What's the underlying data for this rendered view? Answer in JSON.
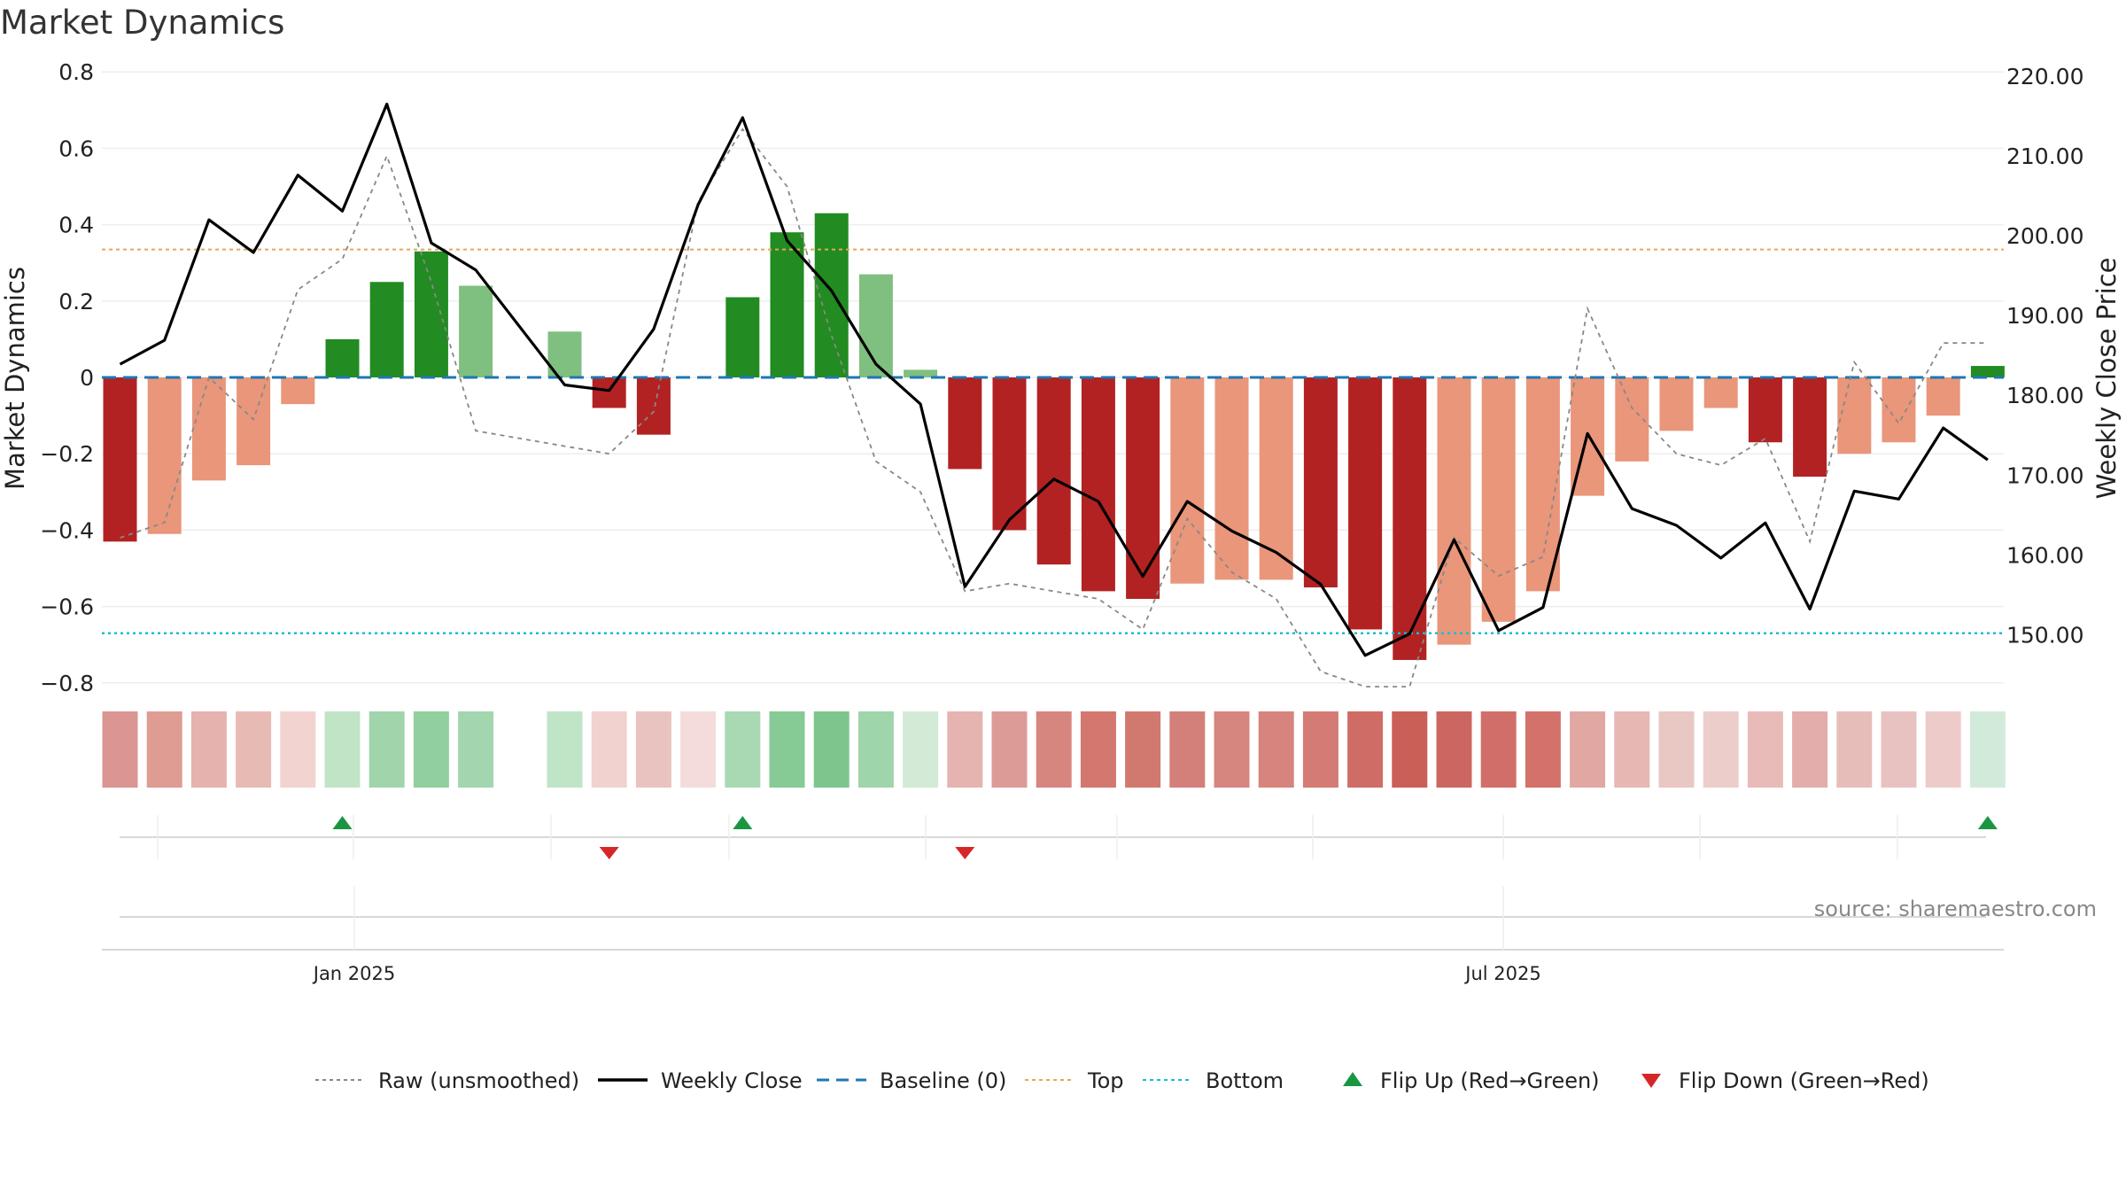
{
  "chart_data": {
    "type": "bar",
    "title": "Market Dynamics",
    "ylabel": "Market Dynamics",
    "ylabel_right": "Weekly Close Price",
    "ylim": [
      -0.8,
      0.8
    ],
    "ylim_right": [
      142.6,
      220.5
    ],
    "y_ticks": [
      "0.8",
      "0.6",
      "0.4",
      "0.2",
      "0",
      "−0.2",
      "−0.4",
      "−0.6",
      "−0.8"
    ],
    "y_ticks_right": [
      "220.00",
      "210.00",
      "200.00",
      "190.00",
      "180.00",
      "170.00",
      "160.00",
      "150.00"
    ],
    "date_ticks": [
      "Jan 2025",
      "Jul 2025"
    ],
    "grid": true,
    "legend_position": "bottom-center",
    "top_level": 0.335,
    "bottom_level": -0.67,
    "baseline": 0,
    "bars": [
      {
        "value": -0.43,
        "color": "#b22222"
      },
      {
        "value": -0.41,
        "color": "#e9967a"
      },
      {
        "value": -0.27,
        "color": "#e9967a"
      },
      {
        "value": -0.23,
        "color": "#e9967a"
      },
      {
        "value": -0.07,
        "color": "#e9967a"
      },
      {
        "value": 0.1,
        "color": "#228b22"
      },
      {
        "value": 0.25,
        "color": "#228b22"
      },
      {
        "value": 0.33,
        "color": "#228b22"
      },
      {
        "value": 0.24,
        "color": "#7fbf7f"
      },
      {
        "value": null,
        "color": ""
      },
      {
        "value": 0.12,
        "color": "#7fbf7f"
      },
      {
        "value": -0.08,
        "color": "#b22222"
      },
      {
        "value": -0.15,
        "color": "#b22222"
      },
      {
        "value": null,
        "color": ""
      },
      {
        "value": 0.21,
        "color": "#228b22"
      },
      {
        "value": 0.38,
        "color": "#228b22"
      },
      {
        "value": 0.43,
        "color": "#228b22"
      },
      {
        "value": 0.27,
        "color": "#7fbf7f"
      },
      {
        "value": 0.02,
        "color": "#7fbf7f"
      },
      {
        "value": -0.24,
        "color": "#b22222"
      },
      {
        "value": -0.4,
        "color": "#b22222"
      },
      {
        "value": -0.49,
        "color": "#b22222"
      },
      {
        "value": -0.56,
        "color": "#b22222"
      },
      {
        "value": -0.58,
        "color": "#b22222"
      },
      {
        "value": -0.54,
        "color": "#e9967a"
      },
      {
        "value": -0.53,
        "color": "#e9967a"
      },
      {
        "value": -0.53,
        "color": "#e9967a"
      },
      {
        "value": -0.55,
        "color": "#b22222"
      },
      {
        "value": -0.66,
        "color": "#b22222"
      },
      {
        "value": -0.74,
        "color": "#b22222"
      },
      {
        "value": -0.7,
        "color": "#e9967a"
      },
      {
        "value": -0.64,
        "color": "#e9967a"
      },
      {
        "value": -0.56,
        "color": "#e9967a"
      },
      {
        "value": -0.31,
        "color": "#e9967a"
      },
      {
        "value": -0.22,
        "color": "#e9967a"
      },
      {
        "value": -0.14,
        "color": "#e9967a"
      },
      {
        "value": -0.08,
        "color": "#e9967a"
      },
      {
        "value": -0.17,
        "color": "#b22222"
      },
      {
        "value": -0.26,
        "color": "#b22222"
      },
      {
        "value": -0.2,
        "color": "#e9967a"
      },
      {
        "value": -0.17,
        "color": "#e9967a"
      },
      {
        "value": -0.1,
        "color": "#e9967a"
      },
      {
        "value": 0.03,
        "color": "#228b22"
      }
    ],
    "heat_strip": [
      {
        "color": "#db9592"
      },
      {
        "color": "#de9c93"
      },
      {
        "color": "#e5b2ad"
      },
      {
        "color": "#e8bab4"
      },
      {
        "color": "#f2d3cf"
      },
      {
        "color": "#c1e4c7"
      },
      {
        "color": "#a0d5ac"
      },
      {
        "color": "#91cf9e"
      },
      {
        "color": "#a2d6ae"
      },
      {
        "color": "#ffffff"
      },
      {
        "color": "#bfe4c6"
      },
      {
        "color": "#f1d2cf"
      },
      {
        "color": "#e9c3bf"
      },
      {
        "color": "#f3dcdb"
      },
      {
        "color": "#a8d9b3"
      },
      {
        "color": "#86ca95"
      },
      {
        "color": "#7cc68e"
      },
      {
        "color": "#9fd5ab"
      },
      {
        "color": "#d2ead6"
      },
      {
        "color": "#e5b4b0"
      },
      {
        "color": "#dd9b97"
      },
      {
        "color": "#d7857f"
      },
      {
        "color": "#d3776f"
      },
      {
        "color": "#d1796f"
      },
      {
        "color": "#d3807a"
      },
      {
        "color": "#d6857f"
      },
      {
        "color": "#d6847d"
      },
      {
        "color": "#d47b76"
      },
      {
        "color": "#cf6c66"
      },
      {
        "color": "#c95f57"
      },
      {
        "color": "#cb6760"
      },
      {
        "color": "#d06f69"
      },
      {
        "color": "#d2726b"
      },
      {
        "color": "#e1a7a3"
      },
      {
        "color": "#e7b7b3"
      },
      {
        "color": "#e9c7c3"
      },
      {
        "color": "#eccdca"
      },
      {
        "color": "#e8bbb8"
      },
      {
        "color": "#e2adaa"
      },
      {
        "color": "#e7bdb9"
      },
      {
        "color": "#e8c2c0"
      },
      {
        "color": "#edcbc9"
      },
      {
        "color": "#d2eada"
      }
    ],
    "series": [
      {
        "name": "Raw (unsmoothed)",
        "color": "#888888",
        "values": [
          -0.42,
          -0.38,
          0.0,
          -0.11,
          0.23,
          0.31,
          0.58,
          0.25,
          -0.14,
          null,
          -0.18,
          -0.2,
          -0.09,
          0.46,
          0.65,
          0.5,
          0.11,
          -0.22,
          -0.3,
          -0.56,
          -0.54,
          -0.56,
          -0.58,
          -0.66,
          -0.37,
          -0.51,
          -0.58,
          -0.77,
          -0.81,
          -0.81,
          -0.42,
          -0.52,
          -0.47,
          0.18,
          -0.08,
          -0.2,
          -0.23,
          -0.16,
          -0.43,
          0.04,
          -0.12,
          0.09,
          0.09
        ]
      },
      {
        "name": "Weekly Close",
        "color": "#000000",
        "values": [
          183.9,
          186.9,
          202.0,
          197.9,
          207.6,
          203.1,
          216.5,
          199.1,
          195.7,
          null,
          181.3,
          180.6,
          188.3,
          203.9,
          214.8,
          199.4,
          193.1,
          183.9,
          178.9,
          156.0,
          164.4,
          169.5,
          166.7,
          157.3,
          166.7,
          163.0,
          160.3,
          156.3,
          147.4,
          150.1,
          161.9,
          150.5,
          153.4,
          175.2,
          165.8,
          163.7,
          159.6,
          164.0,
          153.2,
          168.0,
          167.0,
          175.9,
          171.9
        ]
      },
      {
        "name": "Baseline (0)",
        "color": "#1f77b4",
        "values": []
      },
      {
        "name": "Top",
        "color": "#e3a857",
        "values": []
      },
      {
        "name": "Bottom",
        "color": "#17becf",
        "values": []
      }
    ],
    "flips_up": [
      5,
      14,
      42
    ],
    "flips_down": [
      11,
      19
    ],
    "legend": [
      {
        "label": "Raw (unsmoothed)",
        "kind": "dotted",
        "color": "#888888"
      },
      {
        "label": "Weekly Close",
        "kind": "solid",
        "color": "#000000"
      },
      {
        "label": "Baseline (0)",
        "kind": "dashed",
        "color": "#1f77b4"
      },
      {
        "label": "Top",
        "kind": "dotted",
        "color": "#e3a857"
      },
      {
        "label": "Bottom",
        "kind": "dotted",
        "color": "#17becf"
      },
      {
        "label": "Flip Up (Red→Green)",
        "kind": "tri-up",
        "color": "#1a9641"
      },
      {
        "label": "Flip Down (Green→Red)",
        "kind": "tri-down",
        "color": "#d62728"
      }
    ],
    "source": "source: sharemaestro.com"
  }
}
